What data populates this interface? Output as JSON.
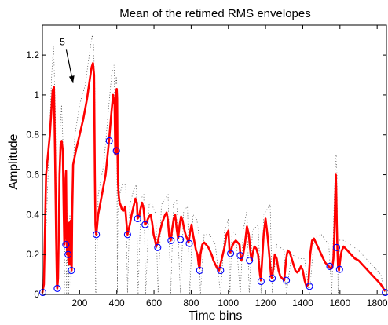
{
  "chart_data": {
    "type": "line",
    "title": "Mean of the retimed RMS envelopes",
    "xlabel": "Time bins",
    "ylabel": "Amplitude",
    "xlim": [
      0,
      1850
    ],
    "ylim": [
      0,
      1.35
    ],
    "xticks": [
      {
        "value": 200,
        "label": "200"
      },
      {
        "value": 400,
        "label": "400"
      },
      {
        "value": 600,
        "label": "600"
      },
      {
        "value": 800,
        "label": "800"
      },
      {
        "value": 1000,
        "label": "1000"
      },
      {
        "value": 1200,
        "label": "1200"
      },
      {
        "value": 1400,
        "label": "1400"
      },
      {
        "value": 1600,
        "label": "1600"
      },
      {
        "value": 1800,
        "label": "1800"
      }
    ],
    "yticks": [
      {
        "value": 0,
        "label": "0"
      },
      {
        "value": 0.2,
        "label": "0.2"
      },
      {
        "value": 0.4,
        "label": "0.4"
      },
      {
        "value": 0.6,
        "label": "0.6"
      },
      {
        "value": 0.8,
        "label": "0.8"
      },
      {
        "value": 1,
        "label": "1"
      },
      {
        "value": 1.2,
        "label": "1.2"
      }
    ],
    "grid": false,
    "colors": {
      "mean": "#ff0000",
      "markers": "#0000ff",
      "envelopes": "#000000"
    },
    "annotation": {
      "text": "5",
      "x_text": 120,
      "y_text": 1.25,
      "x_head": 165,
      "y_head": 1.06
    },
    "series": [
      {
        "style": "red-thick",
        "x": [
          0,
          8,
          20,
          40,
          55,
          62,
          68,
          74,
          78,
          80,
          84,
          88,
          92,
          98,
          104,
          110,
          114,
          118,
          121,
          124,
          127,
          130,
          133,
          136,
          138,
          141,
          143,
          145,
          147,
          149,
          151,
          153,
          155,
          157,
          158,
          160,
          165,
          180,
          200,
          220,
          240,
          255,
          265,
          272,
          278,
          282,
          285,
          288,
          290,
          293,
          300,
          320,
          340,
          358,
          370,
          380,
          388,
          392,
          396,
          398,
          400,
          402,
          404,
          407,
          410,
          415,
          420,
          426,
          432,
          438,
          445,
          452,
          458,
          462,
          470,
          480,
          490,
          500,
          508,
          512,
          520,
          528,
          536,
          544,
          552,
          560,
          568,
          575,
          582,
          590,
          598,
          606,
          612,
          620,
          628,
          636,
          644,
          652,
          660,
          668,
          675,
          682,
          690,
          698,
          706,
          714,
          722,
          730,
          738,
          746,
          754,
          762,
          770,
          778,
          786,
          794,
          802,
          810,
          818,
          826,
          834,
          840,
          845,
          850,
          860,
          870,
          880,
          890,
          900,
          910,
          920,
          930,
          940,
          950,
          960,
          970,
          980,
          990,
          1000,
          1006,
          1010,
          1015,
          1020,
          1030,
          1040,
          1050,
          1060,
          1065,
          1070,
          1080,
          1090,
          1100,
          1110,
          1120,
          1125,
          1130,
          1140,
          1150,
          1160,
          1170,
          1175,
          1180,
          1190,
          1200,
          1210,
          1220,
          1230,
          1235,
          1240,
          1250,
          1260,
          1270,
          1280,
          1290,
          1300,
          1310,
          1315,
          1320,
          1330,
          1340,
          1350,
          1360,
          1370,
          1380,
          1390,
          1400,
          1410,
          1420,
          1430,
          1435,
          1440,
          1450,
          1460,
          1470,
          1480,
          1490,
          1500,
          1510,
          1520,
          1530,
          1540,
          1550,
          1556,
          1560,
          1565,
          1570,
          1575,
          1578,
          1580,
          1583,
          1586,
          1590,
          1595,
          1600,
          1605,
          1610,
          1620,
          1640,
          1660,
          1680,
          1700,
          1720,
          1740,
          1760,
          1780,
          1800,
          1820,
          1840
        ],
        "y": [
          0.01,
          0.05,
          0.6,
          0.8,
          1.02,
          1.04,
          0.7,
          0.28,
          0.05,
          0.03,
          0.08,
          0.3,
          0.6,
          0.75,
          0.77,
          0.72,
          0.45,
          0.25,
          0.3,
          0.58,
          0.62,
          0.3,
          0.2,
          0.3,
          0.2,
          0.15,
          0.35,
          0.36,
          0.2,
          0.15,
          0.3,
          0.37,
          0.2,
          0.12,
          0.15,
          0.4,
          0.65,
          0.72,
          0.8,
          0.88,
          0.98,
          1.08,
          1.14,
          1.16,
          1.1,
          0.6,
          0.35,
          0.31,
          0.3,
          0.33,
          0.4,
          0.5,
          0.6,
          0.77,
          0.9,
          1.0,
          0.95,
          0.7,
          0.74,
          1.02,
          1.03,
          0.98,
          0.72,
          0.55,
          0.5,
          0.46,
          0.45,
          0.43,
          0.42,
          0.42,
          0.44,
          0.36,
          0.3,
          0.32,
          0.35,
          0.4,
          0.44,
          0.48,
          0.46,
          0.38,
          0.39,
          0.43,
          0.46,
          0.43,
          0.35,
          0.36,
          0.38,
          0.39,
          0.4,
          0.36,
          0.3,
          0.27,
          0.24,
          0.26,
          0.3,
          0.33,
          0.36,
          0.38,
          0.4,
          0.41,
          0.37,
          0.29,
          0.27,
          0.33,
          0.38,
          0.4,
          0.33,
          0.28,
          0.35,
          0.39,
          0.37,
          0.33,
          0.3,
          0.28,
          0.26,
          0.31,
          0.35,
          0.3,
          0.26,
          0.22,
          0.2,
          0.15,
          0.13,
          0.2,
          0.25,
          0.26,
          0.25,
          0.24,
          0.22,
          0.2,
          0.17,
          0.15,
          0.13,
          0.12,
          0.16,
          0.2,
          0.24,
          0.3,
          0.32,
          0.22,
          0.21,
          0.22,
          0.24,
          0.26,
          0.27,
          0.26,
          0.25,
          0.2,
          0.17,
          0.2,
          0.26,
          0.34,
          0.3,
          0.2,
          0.17,
          0.2,
          0.24,
          0.23,
          0.2,
          0.1,
          0.07,
          0.15,
          0.3,
          0.38,
          0.3,
          0.2,
          0.09,
          0.08,
          0.12,
          0.2,
          0.18,
          0.12,
          0.09,
          0.08,
          0.07,
          0.17,
          0.2,
          0.22,
          0.21,
          0.18,
          0.15,
          0.12,
          0.11,
          0.12,
          0.14,
          0.12,
          0.07,
          0.04,
          0.05,
          0.12,
          0.2,
          0.27,
          0.28,
          0.26,
          0.24,
          0.22,
          0.2,
          0.18,
          0.16,
          0.15,
          0.14,
          0.13,
          0.13,
          0.14,
          0.18,
          0.3,
          0.5,
          0.6,
          0.52,
          0.35,
          0.24,
          0.14,
          0.12,
          0.16,
          0.2,
          0.22,
          0.24,
          0.22,
          0.2,
          0.18,
          0.17,
          0.15,
          0.13,
          0.11,
          0.09,
          0.07,
          0.05,
          0.02
        ]
      },
      {
        "style": "blue-circles",
        "x": [
          2,
          80,
          126,
          138,
          156,
          290,
          360,
          398,
          458,
          512,
          552,
          620,
          692,
          742,
          790,
          846,
          958,
          1012,
          1064,
          1114,
          1176,
          1236,
          1312,
          1436,
          1546,
          1582,
          1598,
          1844
        ],
        "y": [
          0.01,
          0.03,
          0.25,
          0.2,
          0.12,
          0.3,
          0.77,
          0.72,
          0.3,
          0.38,
          0.35,
          0.235,
          0.27,
          0.275,
          0.255,
          0.12,
          0.12,
          0.205,
          0.195,
          0.17,
          0.065,
          0.08,
          0.07,
          0.04,
          0.14,
          0.235,
          0.125,
          0.01
        ]
      },
      {
        "style": "black-dotted",
        "x": [
          0,
          15,
          50,
          60,
          70,
          78,
          85,
          95,
          103,
          110,
          118,
          124,
          130,
          136,
          142,
          148,
          154,
          160,
          175,
          200,
          230,
          255,
          268,
          275,
          282,
          286,
          290,
          300,
          330,
          355,
          372,
          385,
          392,
          397,
          400,
          403,
          408,
          415,
          430,
          448,
          458,
          470,
          490,
          505,
          515,
          530,
          545,
          556,
          575,
          590,
          610,
          622,
          640,
          660,
          676,
          690,
          705,
          722,
          742,
          760,
          780,
          792,
          810,
          830,
          842,
          850,
          870,
          900,
          930,
          958,
          980,
          1000,
          1008,
          1020,
          1040,
          1064,
          1080,
          1100,
          1112,
          1130,
          1160,
          1176,
          1190,
          1225,
          1236,
          1260,
          1300,
          1312,
          1340,
          1380,
          1410,
          1436,
          1460,
          1500,
          1540,
          1556,
          1570,
          1577,
          1580,
          1584,
          1590,
          1600,
          1640,
          1700,
          1760,
          1820,
          1844
        ],
        "y": [
          0.0,
          0.2,
          1.1,
          1.25,
          0.9,
          0.0,
          0.2,
          0.82,
          0.95,
          0.78,
          0.0,
          0.62,
          0.0,
          0.42,
          0.0,
          0.4,
          0.0,
          0.55,
          0.8,
          0.95,
          1.05,
          1.22,
          1.3,
          1.25,
          1.05,
          0.0,
          0.0,
          0.5,
          0.65,
          0.92,
          1.1,
          1.15,
          0.85,
          1.1,
          1.07,
          0.0,
          0.7,
          0.5,
          0.55,
          0.55,
          0.0,
          0.45,
          0.52,
          0.55,
          0.0,
          0.48,
          0.5,
          0.0,
          0.46,
          0.45,
          0.4,
          0.0,
          0.45,
          0.48,
          0.5,
          0.0,
          0.46,
          0.47,
          0.0,
          0.42,
          0.44,
          0.0,
          0.4,
          0.38,
          0.3,
          0.0,
          0.3,
          0.3,
          0.25,
          0.0,
          0.32,
          0.38,
          0.0,
          0.32,
          0.3,
          0.0,
          0.32,
          0.42,
          0.0,
          0.32,
          0.35,
          0.0,
          0.4,
          0.45,
          0.0,
          0.25,
          0.22,
          0.0,
          0.2,
          0.18,
          0.18,
          0.0,
          0.28,
          0.3,
          0.25,
          0.0,
          0.5,
          0.68,
          0.7,
          0.6,
          0.0,
          0.28,
          0.26,
          0.22,
          0.16,
          0.1,
          0.0
        ]
      }
    ]
  }
}
